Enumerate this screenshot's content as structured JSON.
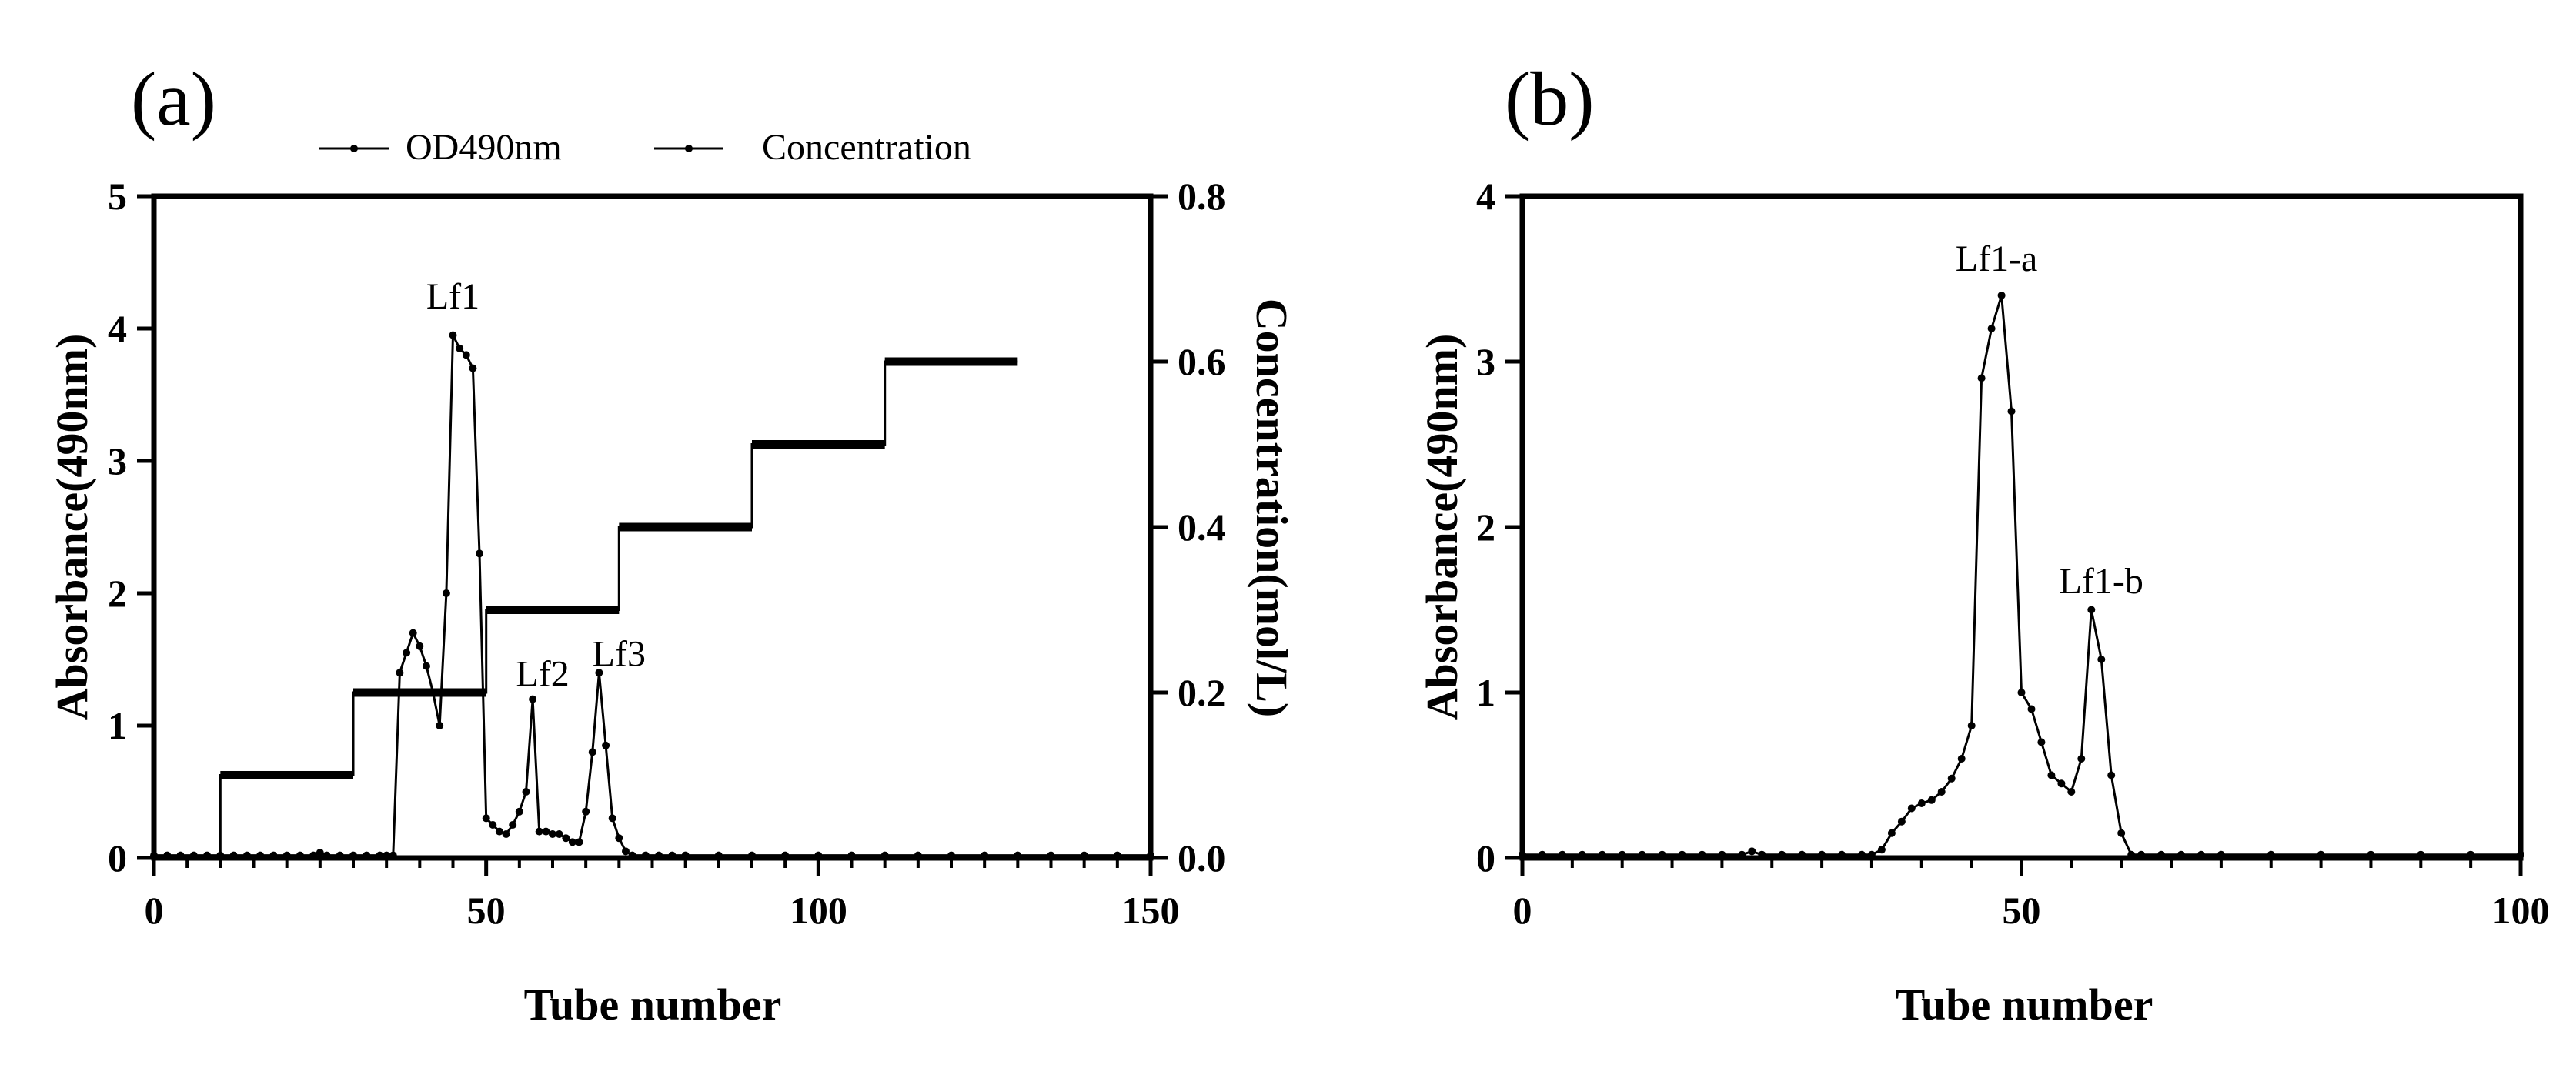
{
  "chart_data": [
    {
      "type": "line",
      "panel_label": "(a)",
      "xlabel": "Tube number",
      "ylabel": "Absorbance(490nm)",
      "y2label": "Concentration(mol/L)",
      "xlim": [
        0,
        150
      ],
      "ylim": [
        0,
        5
      ],
      "y2lim": [
        0,
        0.8
      ],
      "xticks": [
        "0",
        "50",
        "100",
        "150"
      ],
      "yticks": [
        "0",
        "1",
        "2",
        "3",
        "4",
        "5"
      ],
      "y2ticks": [
        "0.0",
        "0.2",
        "0.4",
        "0.6",
        "0.8"
      ],
      "legend": {
        "position": "top",
        "entries": [
          "OD490nm",
          "Concentration"
        ]
      },
      "annotations": [
        {
          "text": "Lf1",
          "x": 45,
          "y": 4.15
        },
        {
          "text": "Lf2",
          "x": 58.5,
          "y": 1.3
        },
        {
          "text": "Lf3",
          "x": 70,
          "y": 1.45
        }
      ],
      "series": [
        {
          "name": "OD490nm",
          "axis": "left",
          "x": [
            0,
            2,
            4,
            6,
            8,
            10,
            12,
            14,
            16,
            18,
            20,
            22,
            24,
            25,
            26,
            28,
            30,
            32,
            34,
            35,
            36,
            37,
            38,
            39,
            40,
            41,
            42,
            43,
            44,
            45,
            46,
            47,
            48,
            49,
            50,
            51,
            52,
            53,
            54,
            55,
            56,
            57,
            58,
            59,
            60,
            61,
            62,
            63,
            64,
            65,
            66,
            67,
            68,
            69,
            70,
            71,
            72,
            74,
            76,
            78,
            80,
            85,
            90,
            95,
            100,
            105,
            110,
            115,
            120,
            125,
            130,
            135,
            140,
            145,
            150
          ],
          "values": [
            0.02,
            0.02,
            0.02,
            0.02,
            0.02,
            0.02,
            0.02,
            0.02,
            0.02,
            0.02,
            0.02,
            0.02,
            0.02,
            0.04,
            0.02,
            0.02,
            0.02,
            0.02,
            0.02,
            0.02,
            0.02,
            1.4,
            1.55,
            1.7,
            1.6,
            1.45,
            1.25,
            1.0,
            2.0,
            3.95,
            3.85,
            3.8,
            3.7,
            2.3,
            0.3,
            0.25,
            0.2,
            0.18,
            0.25,
            0.35,
            0.5,
            1.2,
            0.2,
            0.2,
            0.18,
            0.18,
            0.15,
            0.12,
            0.12,
            0.35,
            0.8,
            1.4,
            0.85,
            0.3,
            0.15,
            0.05,
            0.02,
            0.02,
            0.02,
            0.02,
            0.02,
            0.02,
            0.02,
            0.02,
            0.02,
            0.02,
            0.02,
            0.02,
            0.02,
            0.02,
            0.02,
            0.02,
            0.02,
            0.02,
            0.02
          ]
        },
        {
          "name": "Concentration",
          "axis": "right",
          "x": [
            0,
            10,
            10,
            30,
            30,
            50,
            50,
            70,
            70,
            90,
            90,
            110,
            110,
            130
          ],
          "values": [
            0,
            0,
            0.1,
            0.1,
            0.2,
            0.2,
            0.3,
            0.3,
            0.4,
            0.4,
            0.5,
            0.5,
            0.6,
            0.6
          ],
          "steps": [
            {
              "x0": 10,
              "x1": 30,
              "value": 0.1
            },
            {
              "x0": 30,
              "x1": 50,
              "value": 0.2
            },
            {
              "x0": 50,
              "x1": 70,
              "value": 0.3
            },
            {
              "x0": 70,
              "x1": 90,
              "value": 0.4
            },
            {
              "x0": 90,
              "x1": 110,
              "value": 0.5
            },
            {
              "x0": 110,
              "x1": 130,
              "value": 0.6
            }
          ]
        }
      ]
    },
    {
      "type": "line",
      "panel_label": "(b)",
      "xlabel": "Tube number",
      "ylabel": "Absorbance(490nm)",
      "xlim": [
        0,
        100
      ],
      "ylim": [
        0,
        4
      ],
      "xticks": [
        "0",
        "50",
        "100"
      ],
      "yticks": [
        "0",
        "1",
        "2",
        "3",
        "4"
      ],
      "annotations": [
        {
          "text": "Lf1-a",
          "x": 47.5,
          "y": 3.55
        },
        {
          "text": "Lf1-b",
          "x": 58,
          "y": 1.6
        }
      ],
      "series": [
        {
          "name": "OD490nm",
          "x": [
            0,
            2,
            4,
            6,
            8,
            10,
            12,
            14,
            16,
            18,
            20,
            22,
            23,
            24,
            26,
            28,
            30,
            32,
            34,
            35,
            36,
            37,
            38,
            39,
            40,
            41,
            42,
            43,
            44,
            45,
            46,
            47,
            48,
            49,
            50,
            51,
            52,
            53,
            54,
            55,
            56,
            57,
            58,
            59,
            60,
            61,
            62,
            64,
            66,
            68,
            70,
            75,
            80,
            85,
            90,
            95,
            100
          ],
          "values": [
            0.02,
            0.02,
            0.02,
            0.02,
            0.02,
            0.02,
            0.02,
            0.02,
            0.02,
            0.02,
            0.02,
            0.02,
            0.04,
            0.02,
            0.02,
            0.02,
            0.02,
            0.02,
            0.02,
            0.02,
            0.05,
            0.15,
            0.22,
            0.3,
            0.33,
            0.35,
            0.4,
            0.48,
            0.6,
            0.8,
            2.9,
            3.2,
            3.4,
            2.7,
            1.0,
            0.9,
            0.7,
            0.5,
            0.45,
            0.4,
            0.6,
            1.5,
            1.2,
            0.5,
            0.15,
            0.02,
            0.02,
            0.02,
            0.02,
            0.02,
            0.02,
            0.02,
            0.02,
            0.02,
            0.02,
            0.02,
            0.02
          ]
        }
      ]
    }
  ]
}
